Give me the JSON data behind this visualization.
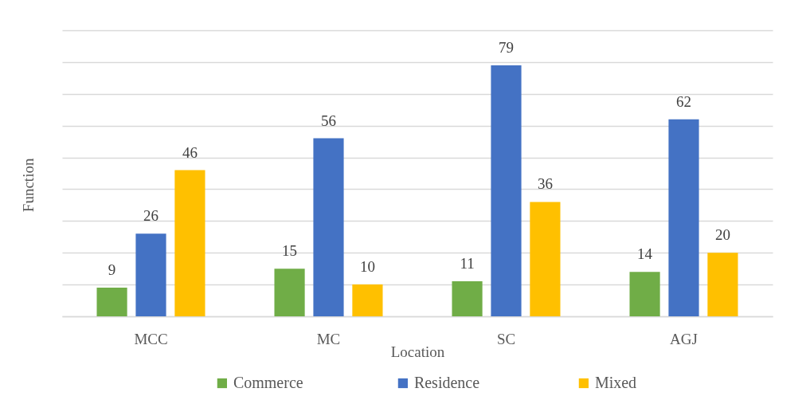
{
  "chart_data": {
    "type": "bar",
    "xlabel": "Location",
    "ylabel": "Function",
    "categories": [
      "MCC",
      "MC",
      "SC",
      "AGJ"
    ],
    "series": [
      {
        "name": "Commerce",
        "color": "#70ad47",
        "values": [
          9,
          15,
          11,
          14
        ]
      },
      {
        "name": "Residence",
        "color": "#4472c4",
        "values": [
          26,
          56,
          79,
          62
        ]
      },
      {
        "name": "Mixed",
        "color": "#ffc000",
        "values": [
          46,
          10,
          36,
          20
        ]
      }
    ],
    "ylim": [
      0,
      90
    ],
    "yticks": [
      {
        "value": 0,
        "label": null
      },
      {
        "value": 10,
        "label": null
      },
      {
        "value": 20,
        "label": null
      },
      {
        "value": 30,
        "label": null
      },
      {
        "value": 40,
        "label": null
      },
      {
        "value": 50,
        "label": null
      },
      {
        "value": 60,
        "label": null
      },
      {
        "value": 70,
        "label": null
      },
      {
        "value": 80,
        "label": null
      },
      {
        "value": 90,
        "label": null
      }
    ],
    "grid": "y",
    "tick_labels": "x",
    "legend": "bottom",
    "data_labels": true
  }
}
